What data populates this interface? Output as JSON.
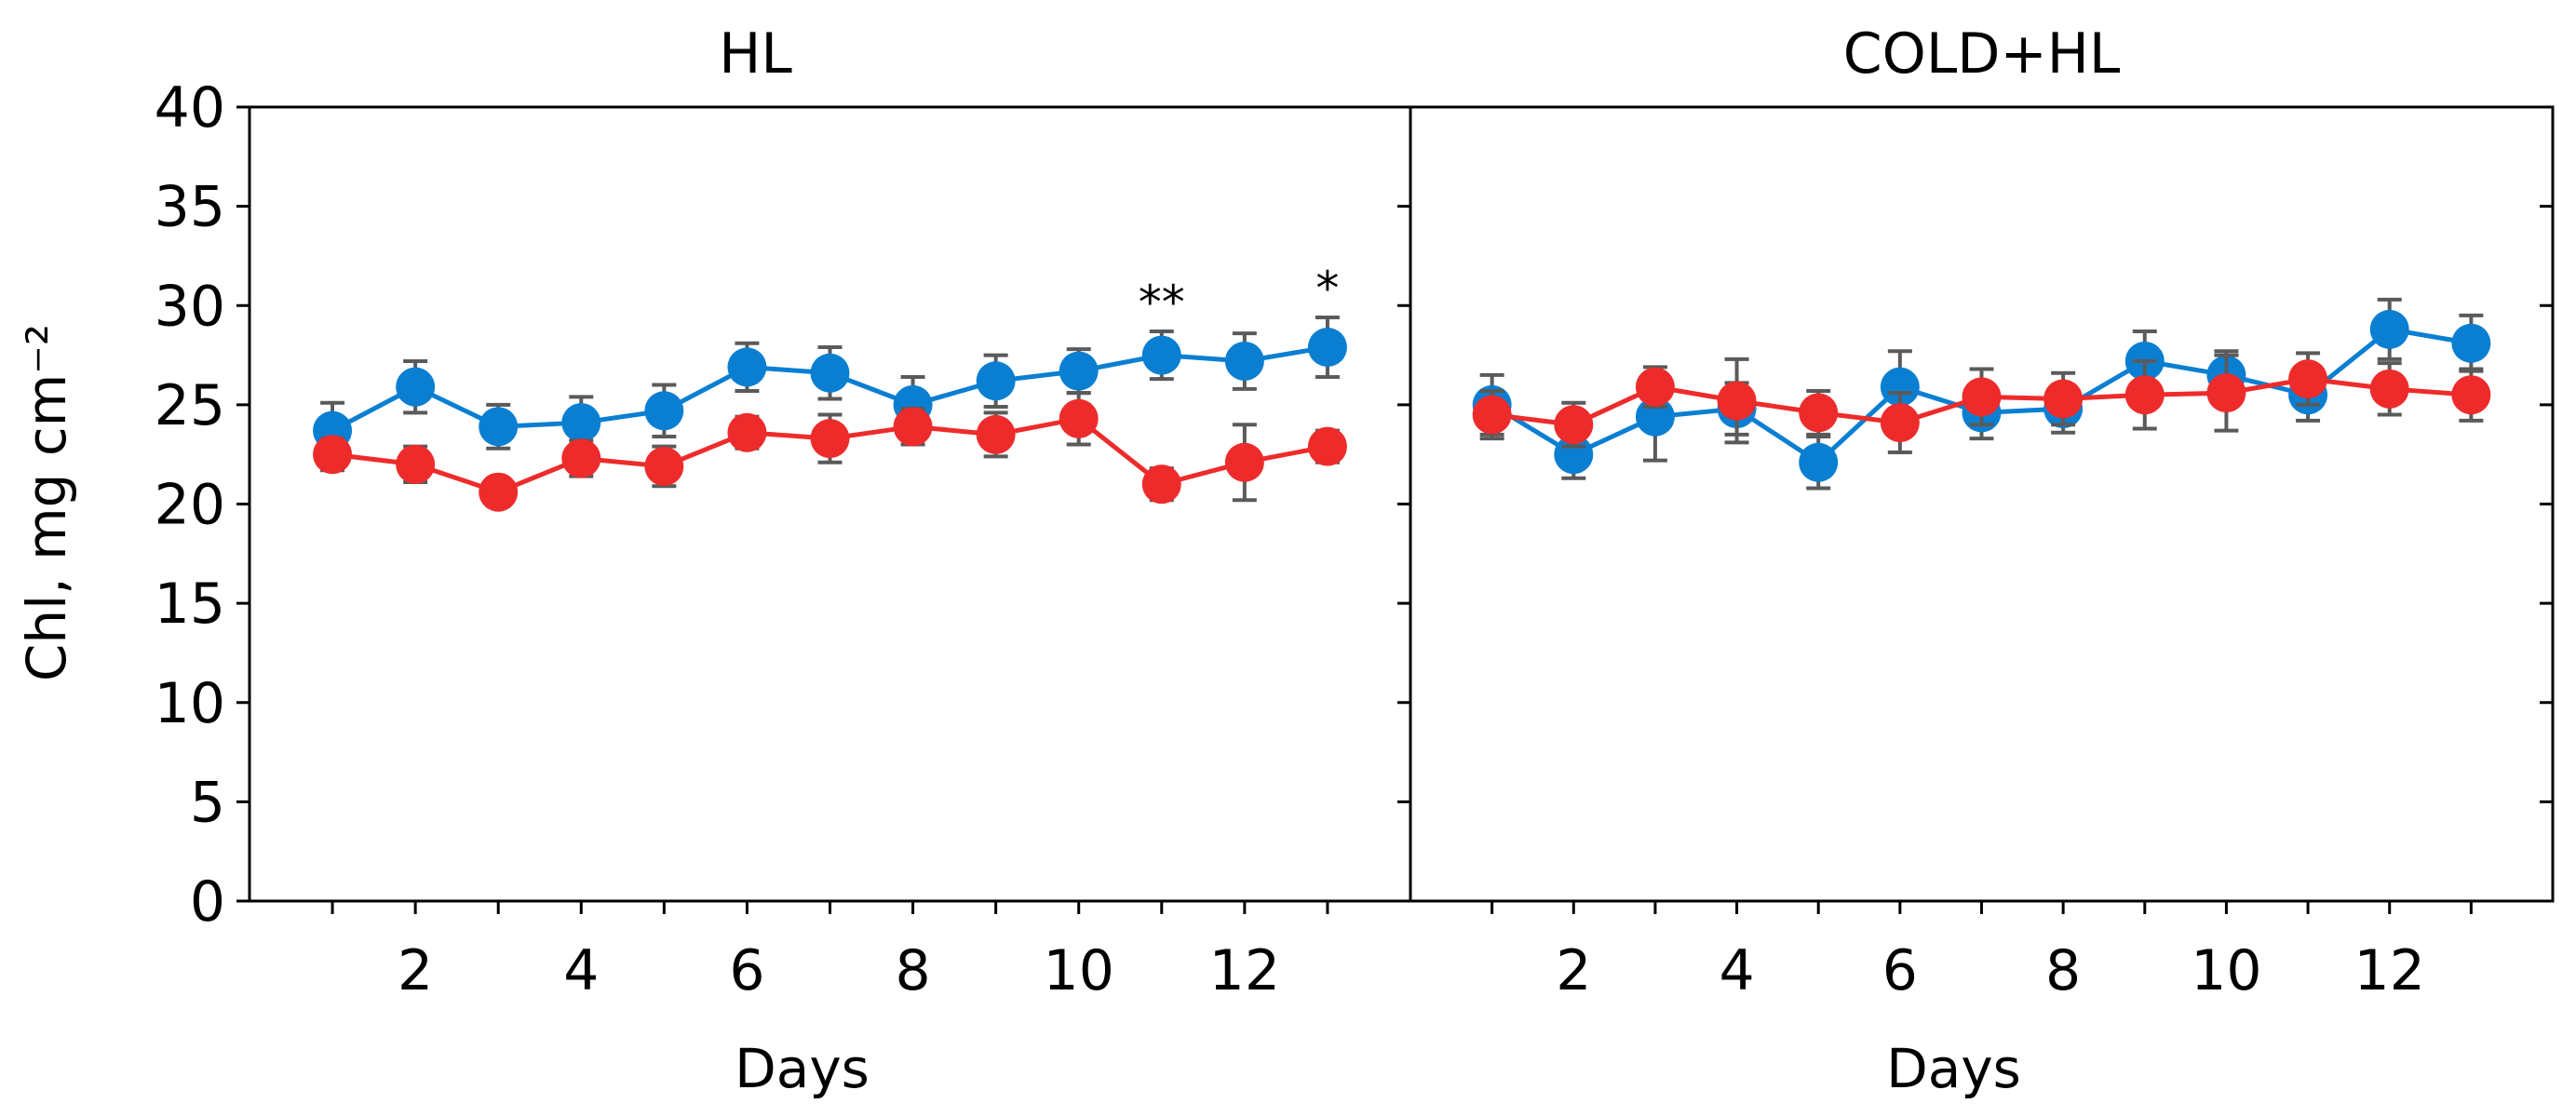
{
  "chart_data": {
    "type": "line",
    "ylabel": "Chl, mg cm⁻²",
    "ylim": [
      0,
      40
    ],
    "yticks": [
      0,
      5,
      10,
      15,
      20,
      25,
      30,
      35,
      40
    ],
    "xlim": [
      0,
      14
    ],
    "xticks_labeled": [
      2,
      4,
      6,
      8,
      10,
      12
    ],
    "xticks_minor": [
      1,
      2,
      3,
      4,
      5,
      6,
      7,
      8,
      9,
      10,
      11,
      12,
      13
    ],
    "panels": [
      {
        "title": "HL",
        "xlabel": "Days",
        "series": [
          {
            "name": "blue",
            "color": "#0A7FD2",
            "x": [
              1,
              2,
              3,
              4,
              5,
              6,
              7,
              8,
              9,
              10,
              11,
              12,
              13
            ],
            "values": [
              23.7,
              25.9,
              23.9,
              24.1,
              24.7,
              26.9,
              26.6,
              25.0,
              26.2,
              26.7,
              27.5,
              27.2,
              27.9
            ],
            "errors": [
              1.4,
              1.3,
              1.1,
              1.3,
              1.3,
              1.2,
              1.3,
              1.4,
              1.3,
              1.1,
              1.2,
              1.4,
              1.5
            ]
          },
          {
            "name": "red",
            "color": "#EE2B2B",
            "x": [
              1,
              2,
              3,
              4,
              5,
              6,
              7,
              8,
              9,
              10,
              11,
              12,
              13
            ],
            "values": [
              22.5,
              22.0,
              20.6,
              22.3,
              21.9,
              23.6,
              23.3,
              23.9,
              23.5,
              24.3,
              21.0,
              22.1,
              22.9
            ],
            "errors": [
              0.8,
              0.9,
              0.7,
              0.9,
              1.0,
              0.8,
              1.2,
              0.9,
              1.1,
              1.3,
              0.8,
              1.9,
              0.8
            ]
          }
        ],
        "annotations": [
          {
            "x": 11,
            "text": "**"
          },
          {
            "x": 13,
            "text": "*"
          }
        ]
      },
      {
        "title": "COLD+HL",
        "xlabel": "Days",
        "series": [
          {
            "name": "blue",
            "color": "#0A7FD2",
            "x": [
              1,
              2,
              3,
              4,
              5,
              6,
              7,
              8,
              9,
              10,
              11,
              12,
              13
            ],
            "values": [
              25.0,
              22.5,
              24.4,
              24.8,
              22.1,
              25.9,
              24.6,
              24.8,
              27.2,
              26.5,
              25.5,
              28.8,
              28.1
            ],
            "errors": [
              1.5,
              1.2,
              2.2,
              1.3,
              1.3,
              1.8,
              1.3,
              1.2,
              1.5,
              1.2,
              1.3,
              1.5,
              1.4
            ]
          },
          {
            "name": "red",
            "color": "#EE2B2B",
            "x": [
              1,
              2,
              3,
              4,
              5,
              6,
              7,
              8,
              9,
              10,
              11,
              12,
              13
            ],
            "values": [
              24.5,
              24.0,
              25.9,
              25.2,
              24.6,
              24.1,
              25.4,
              25.3,
              25.5,
              25.6,
              26.3,
              25.8,
              25.5
            ],
            "errors": [
              1.2,
              1.1,
              1.0,
              2.1,
              1.1,
              1.5,
              1.4,
              1.3,
              1.7,
              1.9,
              1.3,
              1.3,
              1.3
            ]
          }
        ],
        "annotations": []
      }
    ]
  }
}
